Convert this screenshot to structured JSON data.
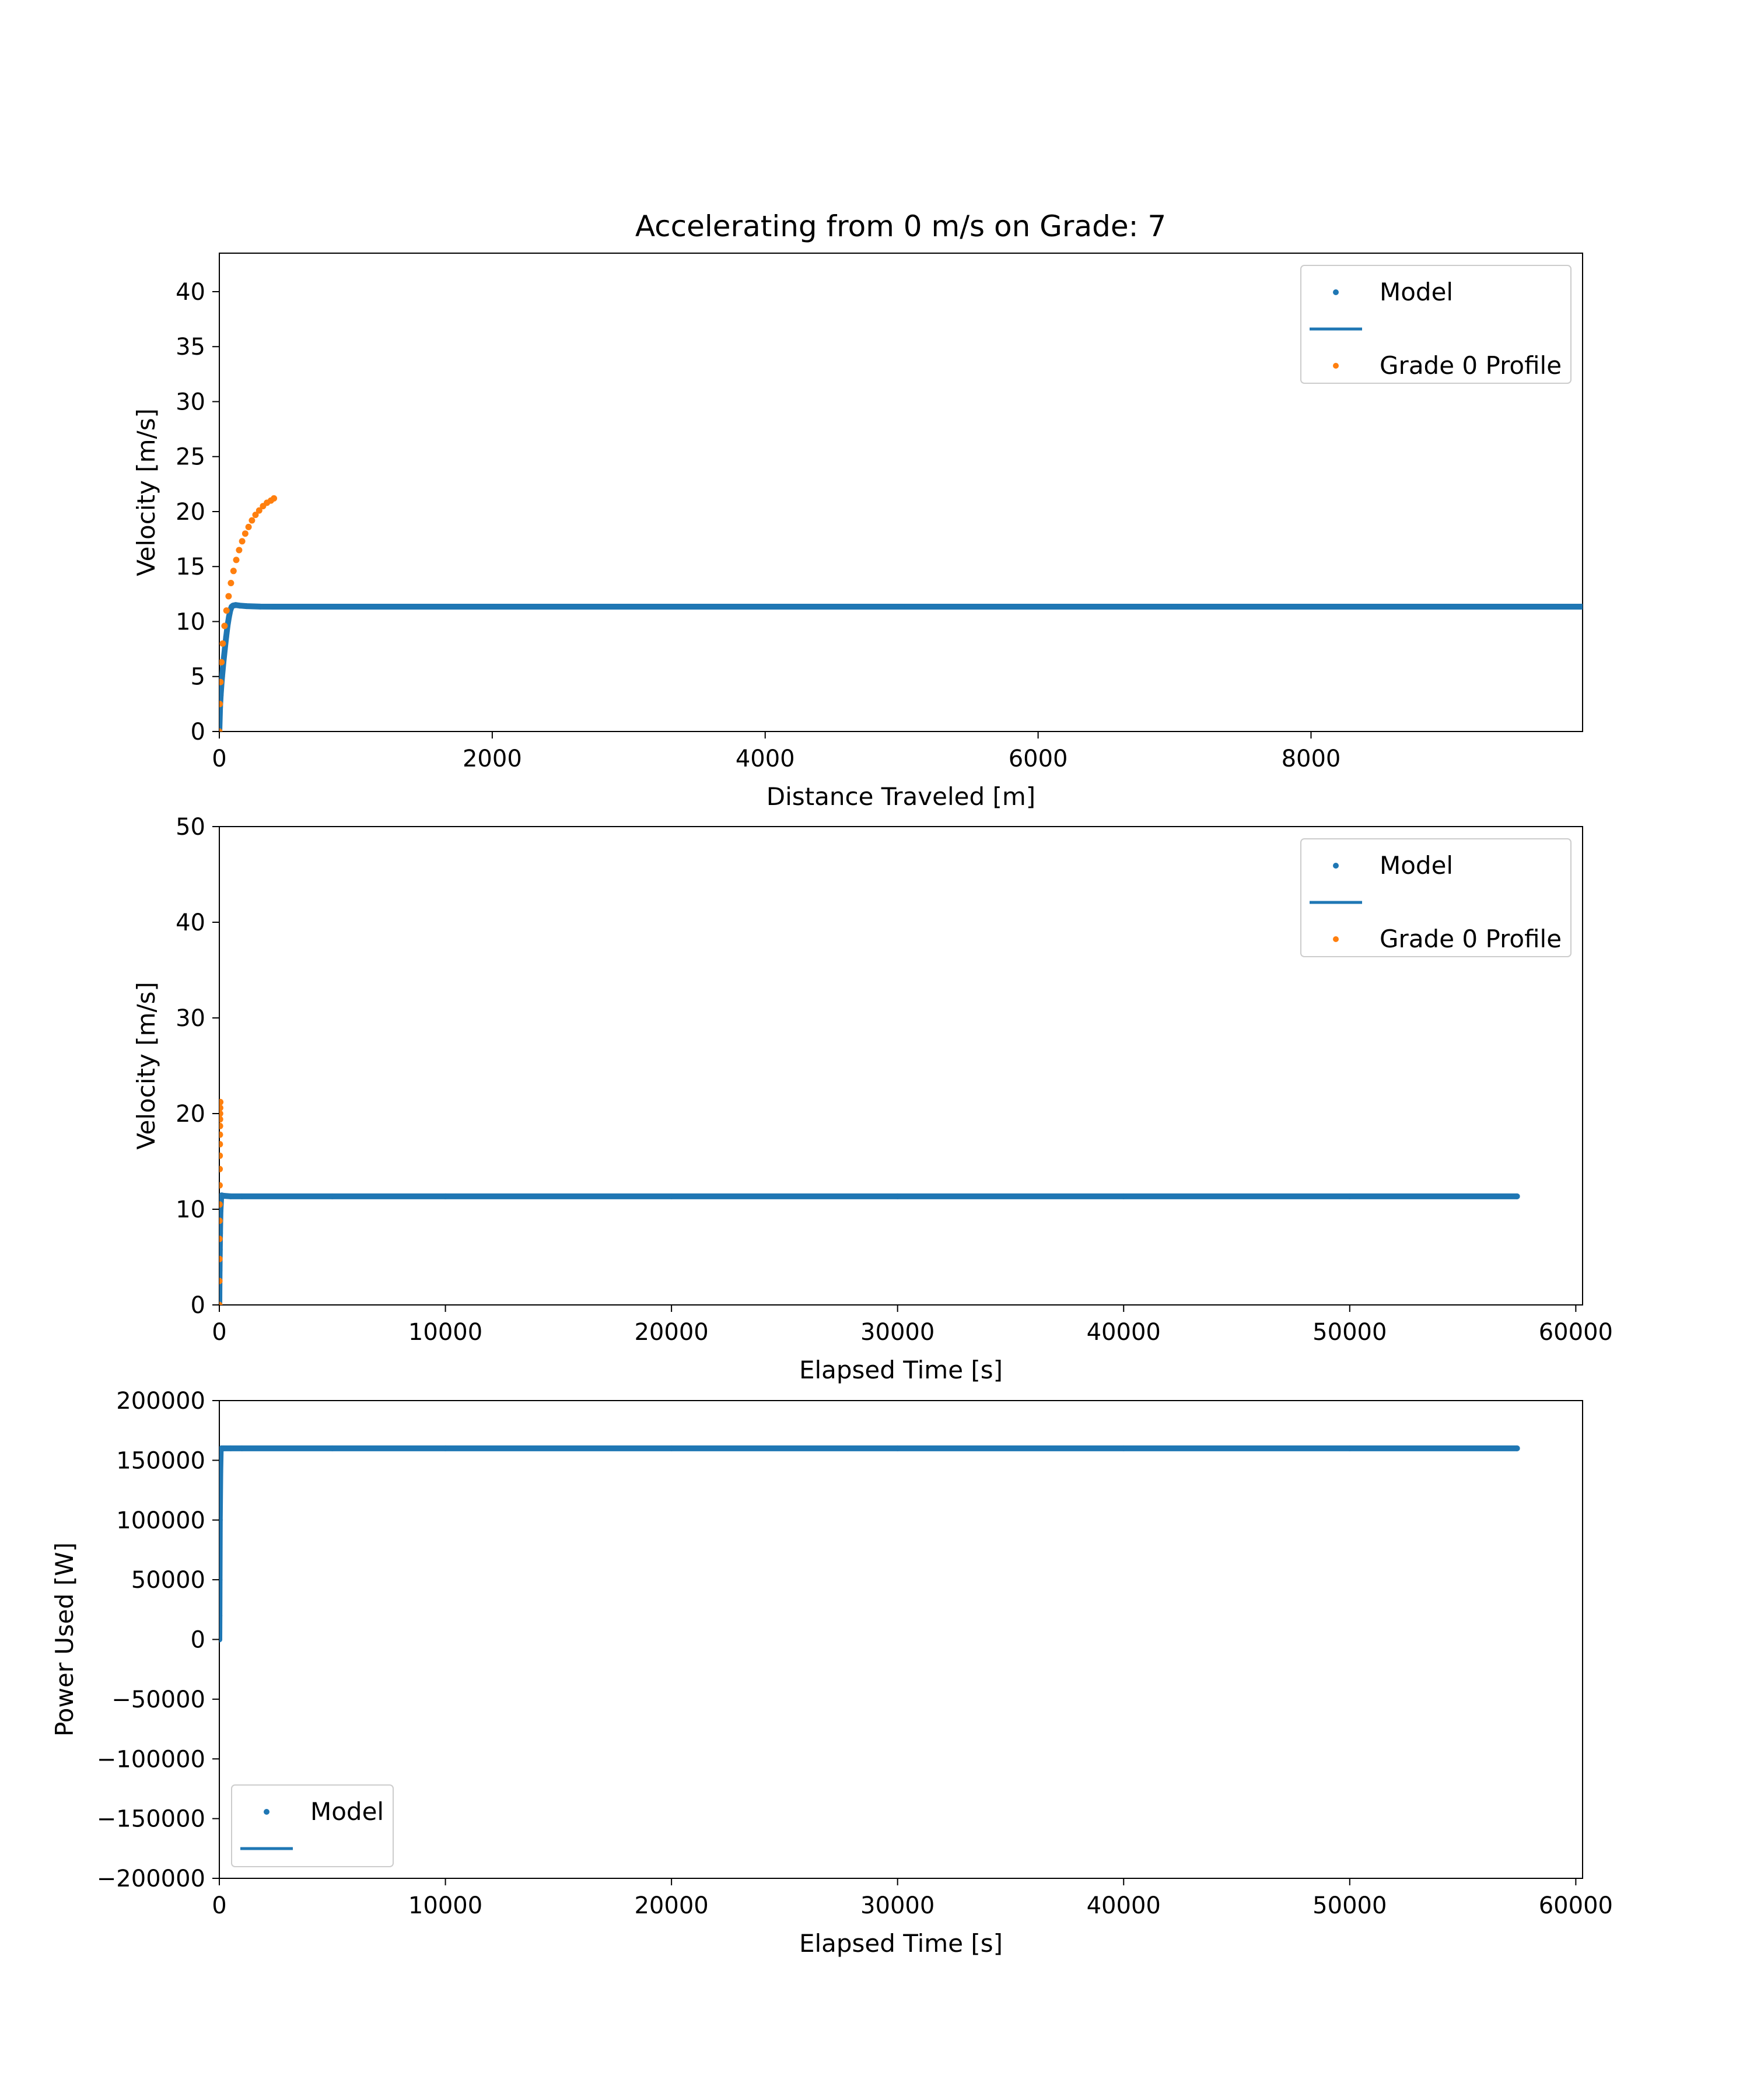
{
  "title": "Accelerating from 0 m/s on Grade: 7",
  "colors": {
    "model": "#1f77b4",
    "profile": "#ff7f0e"
  },
  "chart_data": [
    {
      "type": "scatter",
      "xlabel": "Distance Traveled [m]",
      "ylabel": "Velocity [m/s]",
      "xlim": [
        0,
        9990
      ],
      "ylim": [
        0,
        43.5
      ],
      "xticks": [
        0,
        2000,
        4000,
        6000,
        8000
      ],
      "xtick_labels": [
        "0",
        "2000",
        "4000",
        "6000",
        "8000"
      ],
      "yticks": [
        0,
        5,
        10,
        15,
        20,
        25,
        30,
        35,
        40
      ],
      "ytick_labels": [
        "0",
        "5",
        "10",
        "15",
        "20",
        "25",
        "30",
        "35",
        "40"
      ],
      "legend": {
        "location": "upper right",
        "entries": [
          "Model",
          "",
          "Grade 0 Profile"
        ]
      },
      "series": [
        {
          "name": "Model",
          "color": "#1f77b4",
          "x": [
            0,
            5,
            10,
            15,
            20,
            30,
            40,
            50,
            60,
            70,
            80,
            90,
            100,
            120,
            150,
            200,
            250,
            300,
            400,
            600,
            1000,
            2000,
            3000,
            4000,
            5000,
            6000,
            7000,
            8000,
            9000,
            9990
          ],
          "y": [
            0,
            2.2,
            3.3,
            4.2,
            5.0,
            6.3,
            7.5,
            8.6,
            9.6,
            10.4,
            11.0,
            11.35,
            11.45,
            11.5,
            11.45,
            11.4,
            11.38,
            11.36,
            11.35,
            11.35,
            11.35,
            11.35,
            11.35,
            11.35,
            11.35,
            11.35,
            11.35,
            11.35,
            11.35,
            11.35
          ]
        },
        {
          "name": "Grade 0 Profile",
          "color": "#ff7f0e",
          "x": [
            0,
            3,
            8,
            15,
            25,
            38,
            52,
            68,
            85,
            104,
            124,
            145,
            167,
            190,
            214,
            239,
            265,
            292,
            320,
            349,
            378,
            400
          ],
          "y": [
            0,
            2.5,
            4.5,
            6.3,
            8.0,
            9.6,
            11.0,
            12.3,
            13.5,
            14.6,
            15.6,
            16.5,
            17.3,
            18.0,
            18.6,
            19.2,
            19.7,
            20.1,
            20.5,
            20.8,
            21.0,
            21.2
          ]
        }
      ]
    },
    {
      "type": "scatter",
      "xlabel": "Elapsed Time [s]",
      "ylabel": "Velocity [m/s]",
      "xlim": [
        0,
        60300
      ],
      "ylim": [
        0,
        50
      ],
      "xticks": [
        0,
        10000,
        20000,
        30000,
        40000,
        50000,
        60000
      ],
      "xtick_labels": [
        "0",
        "10000",
        "20000",
        "30000",
        "40000",
        "50000",
        "60000"
      ],
      "yticks": [
        0,
        10,
        20,
        30,
        40,
        50
      ],
      "ytick_labels": [
        "0",
        "10",
        "20",
        "30",
        "40",
        "50"
      ],
      "legend": {
        "location": "upper right",
        "entries": [
          "Model",
          "",
          "Grade 0 Profile"
        ]
      },
      "series": [
        {
          "name": "Model",
          "color": "#1f77b4",
          "x": [
            0,
            5,
            10,
            20,
            30,
            50,
            80,
            100,
            200,
            500,
            1000,
            5000,
            10000,
            20000,
            30000,
            40000,
            50000,
            57400
          ],
          "y": [
            0,
            2.2,
            3.6,
            5.8,
            7.5,
            9.8,
            11.2,
            11.45,
            11.4,
            11.35,
            11.35,
            11.35,
            11.35,
            11.35,
            11.35,
            11.35,
            11.35,
            11.35
          ]
        },
        {
          "name": "Grade 0 Profile",
          "color": "#ff7f0e",
          "x": [
            0,
            2,
            4,
            6,
            8,
            10,
            13,
            16,
            19,
            22,
            25,
            28,
            31,
            34,
            37,
            40
          ],
          "y": [
            0,
            2.5,
            4.8,
            6.9,
            8.8,
            10.5,
            12.5,
            14.2,
            15.6,
            16.8,
            17.8,
            18.7,
            19.4,
            20.0,
            20.6,
            21.2
          ]
        }
      ]
    },
    {
      "type": "scatter",
      "xlabel": "Elapsed Time [s]",
      "ylabel": "Power Used [W]",
      "xlim": [
        0,
        60300
      ],
      "ylim": [
        -200000,
        200000
      ],
      "xticks": [
        0,
        10000,
        20000,
        30000,
        40000,
        50000,
        60000
      ],
      "xtick_labels": [
        "0",
        "10000",
        "20000",
        "30000",
        "40000",
        "50000",
        "60000"
      ],
      "yticks": [
        -200000,
        -150000,
        -100000,
        -50000,
        0,
        50000,
        100000,
        150000,
        200000
      ],
      "ytick_labels": [
        "−200000",
        "−150000",
        "−100000",
        "−50000",
        "0",
        "50000",
        "100000",
        "150000",
        "200000"
      ],
      "legend": {
        "location": "lower left",
        "entries": [
          "Model",
          ""
        ]
      },
      "series": [
        {
          "name": "Model",
          "color": "#1f77b4",
          "x": [
            0,
            5,
            10,
            20,
            40,
            60,
            100,
            200,
            500,
            1000,
            5000,
            10000,
            20000,
            30000,
            40000,
            50000,
            57400
          ],
          "y": [
            0,
            20000,
            50000,
            100000,
            140000,
            158000,
            160000,
            160000,
            160000,
            160000,
            160000,
            160000,
            160000,
            160000,
            160000,
            160000,
            160000
          ]
        }
      ]
    }
  ]
}
